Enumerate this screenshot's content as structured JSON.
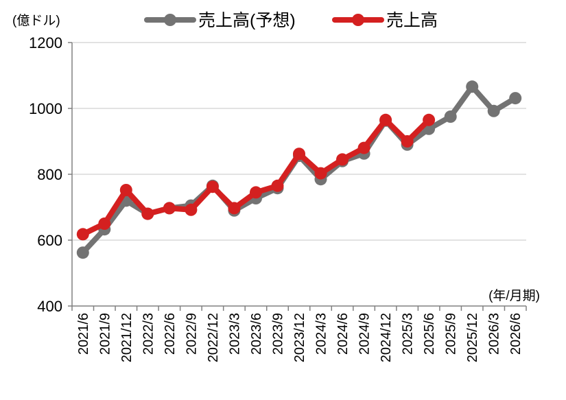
{
  "chart_data": {
    "type": "line",
    "y_unit_label": "(億ドル)",
    "x_unit_label": "(年/月期)",
    "ylim": [
      400,
      1200
    ],
    "yticks": [
      400,
      600,
      800,
      1000,
      1200
    ],
    "grid": true,
    "legend_position": "top",
    "categories": [
      "2021/6",
      "2021/9",
      "2021/12",
      "2022/3",
      "2022/6",
      "2022/9",
      "2022/12",
      "2023/3",
      "2023/6",
      "2023/9",
      "2023/12",
      "2024/3",
      "2024/6",
      "2024/9",
      "2024/12",
      "2025/3",
      "2025/6",
      "2025/9",
      "2025/12",
      "2026/3",
      "2026/6"
    ],
    "series": [
      {
        "name": "売上高(予想)",
        "color": "#737373",
        "values": [
          562,
          633,
          720,
          680,
          697,
          705,
          765,
          690,
          727,
          758,
          856,
          785,
          840,
          863,
          963,
          890,
          938,
          975,
          1066,
          992,
          1031
        ]
      },
      {
        "name": "売上高",
        "color": "#d42020",
        "values": [
          618,
          650,
          752,
          680,
          697,
          692,
          762,
          697,
          745,
          765,
          862,
          803,
          845,
          880,
          965,
          900,
          965,
          null,
          null,
          null,
          null
        ]
      }
    ]
  }
}
